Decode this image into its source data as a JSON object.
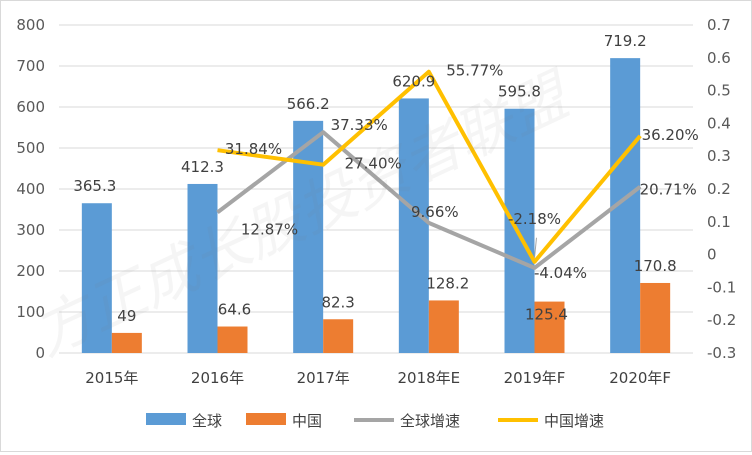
{
  "chart_data": {
    "type": "bar",
    "categories": [
      "2015年",
      "2016年",
      "2017年",
      "2018年E",
      "2019年F",
      "2020年F"
    ],
    "series": [
      {
        "name": "全球",
        "kind": "bar",
        "axis": "left",
        "color": "#5b9bd5",
        "values": [
          365.3,
          412.3,
          566.2,
          620.9,
          595.8,
          719.2
        ],
        "labels": [
          "365.3",
          "412.3",
          "566.2",
          "620.9",
          "595.8",
          "719.2"
        ]
      },
      {
        "name": "中国",
        "kind": "bar",
        "axis": "left",
        "color": "#ed7d31",
        "values": [
          49,
          64.6,
          82.3,
          128.2,
          125.4,
          170.8
        ],
        "labels": [
          "49",
          "64.6",
          "82.3",
          "128.2",
          "125.4",
          "170.8"
        ]
      },
      {
        "name": "全球增速",
        "kind": "line",
        "axis": "right",
        "color": "#a5a5a5",
        "values": [
          null,
          0.1287,
          0.3733,
          0.0966,
          -0.0404,
          0.2071
        ],
        "labels": [
          "",
          "12.87%",
          "37.33%",
          "9.66%",
          "-4.04%",
          "20.71%"
        ]
      },
      {
        "name": "中国增速",
        "kind": "line",
        "axis": "right",
        "color": "#ffc000",
        "values": [
          null,
          0.3184,
          0.274,
          0.5577,
          -0.0218,
          0.362
        ],
        "labels": [
          "",
          "31.84%",
          "27.40%",
          "55.77%",
          "-2.18%",
          "36.20%"
        ]
      }
    ],
    "yleft": {
      "ylim": [
        0,
        800
      ],
      "ticks": [
        "0",
        "100",
        "200",
        "300",
        "400",
        "500",
        "600",
        "700",
        "800"
      ]
    },
    "yright": {
      "ylim": [
        -0.3,
        0.7
      ],
      "ticks": [
        "-0.3",
        "-0.2",
        "-0.1",
        "0",
        "0.1",
        "0.2",
        "0.3",
        "0.4",
        "0.5",
        "0.6",
        "0.7"
      ]
    },
    "legend": {
      "position": "bottom"
    },
    "grid": true,
    "title": ""
  },
  "watermark": "方正成长股投资者联盟"
}
